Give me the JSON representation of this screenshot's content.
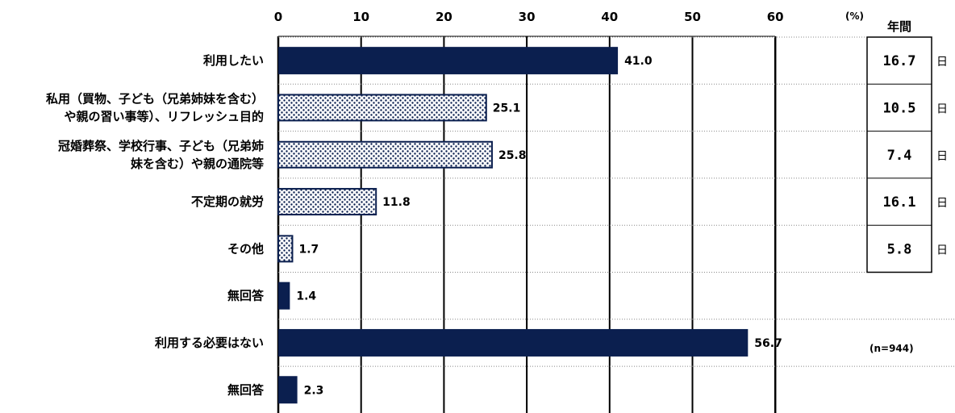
{
  "chart_data": {
    "type": "bar",
    "orientation": "horizontal",
    "x_ticks": [
      "0",
      "10",
      "20",
      "30",
      "40",
      "50",
      "60"
    ],
    "xlim": [
      0,
      60
    ],
    "unit_label": "(%)",
    "grid": "vertical",
    "categories": [
      [
        "利用したい"
      ],
      [
        "私用（買物、子ども（兄弟姉妹を含む）",
        "や親の習い事等）、リフレッシュ目的"
      ],
      [
        "冠婚葬祭、学校行事、子ども（兄弟姉",
        "妹を含む）や親の通院等"
      ],
      [
        "不定期の就労"
      ],
      [
        "その他"
      ],
      [
        "無回答"
      ],
      [
        "利用する必要はない"
      ],
      [
        "無回答"
      ]
    ],
    "values": [
      41.0,
      25.1,
      25.8,
      11.8,
      1.7,
      1.4,
      56.7,
      2.3
    ],
    "value_labels": [
      "41.0",
      "25.1",
      "25.8",
      "11.8",
      "1.7",
      "1.4",
      "56.7",
      "2.3"
    ],
    "fills": [
      "solid",
      "dots",
      "dots",
      "dots",
      "dots",
      "solid",
      "solid",
      "solid"
    ],
    "colors": {
      "bar": "#0b1f4f",
      "grid": "#000000"
    },
    "side_table": {
      "header": "年間",
      "values": [
        "16.7",
        "10.5",
        "7.4",
        "16.1",
        "5.8"
      ],
      "unit": "日"
    },
    "sample_note": "(n=944)"
  }
}
